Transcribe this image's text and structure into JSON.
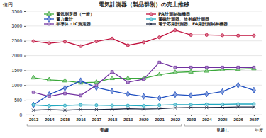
{
  "chart_data": {
    "type": "line",
    "title": "電気計測器（製品群別）の売上推移",
    "y_label": "億円",
    "x_label": "年度",
    "categories": [
      "2013",
      "2014",
      "2015",
      "2016",
      "2017",
      "2018",
      "2019",
      "2020",
      "2021",
      "2022",
      "2023",
      "2024",
      "2025",
      "2026",
      "2027"
    ],
    "annotations": [
      {
        "text": "実績",
        "x": [
          "2013",
          "2022"
        ]
      },
      {
        "text": "見通し",
        "x": [
          "2023",
          "2027"
        ]
      }
    ],
    "ylim": [
      0,
      3500
    ],
    "yticks": [
      0,
      500,
      1000,
      1500,
      2000,
      2500,
      3000,
      3500
    ],
    "grid": true,
    "legend": "top",
    "series": [
      {
        "name": "電気測定器（一般）",
        "color": "#3aa83a",
        "marker": "triangle",
        "values": [
          1250,
          1180,
          1150,
          1080,
          1100,
          1230,
          1230,
          1230,
          1350,
          1430,
          1450,
          1480,
          1520,
          1540,
          1560
        ]
      },
      {
        "name": "PA計測制御機器",
        "color": "#c0103c",
        "marker": "circle",
        "values": [
          2490,
          2420,
          2470,
          2320,
          2480,
          2580,
          2350,
          2450,
          2620,
          2860,
          2700,
          2700,
          2690,
          2680,
          2680
        ]
      },
      {
        "name": "電力量計",
        "color": "#1f4fc0",
        "marker": "diamond",
        "values": [
          330,
          680,
          900,
          1150,
          920,
          800,
          700,
          620,
          560,
          680,
          650,
          700,
          780,
          1000,
          830
        ]
      },
      {
        "name": "電磁計測器、放射線計測器",
        "color": "#20a8c0",
        "marker": "circle",
        "values": [
          330,
          300,
          310,
          330,
          320,
          310,
          310,
          300,
          320,
          340,
          340,
          350,
          350,
          360,
          360
        ]
      },
      {
        "name": "半導体・IC測定器",
        "color": "#7030a0",
        "marker": "square",
        "values": [
          760,
          620,
          720,
          650,
          1000,
          1450,
          1100,
          1200,
          1770,
          1600,
          1600,
          1600,
          1600,
          1600,
          1600
        ]
      },
      {
        "name": "電子応用計測器、FA用計測制御機器",
        "color": "#1a2440",
        "marker": "x",
        "values": [
          150,
          170,
          150,
          170,
          170,
          180,
          200,
          190,
          200,
          230,
          240,
          240,
          250,
          260,
          260
        ]
      }
    ]
  }
}
